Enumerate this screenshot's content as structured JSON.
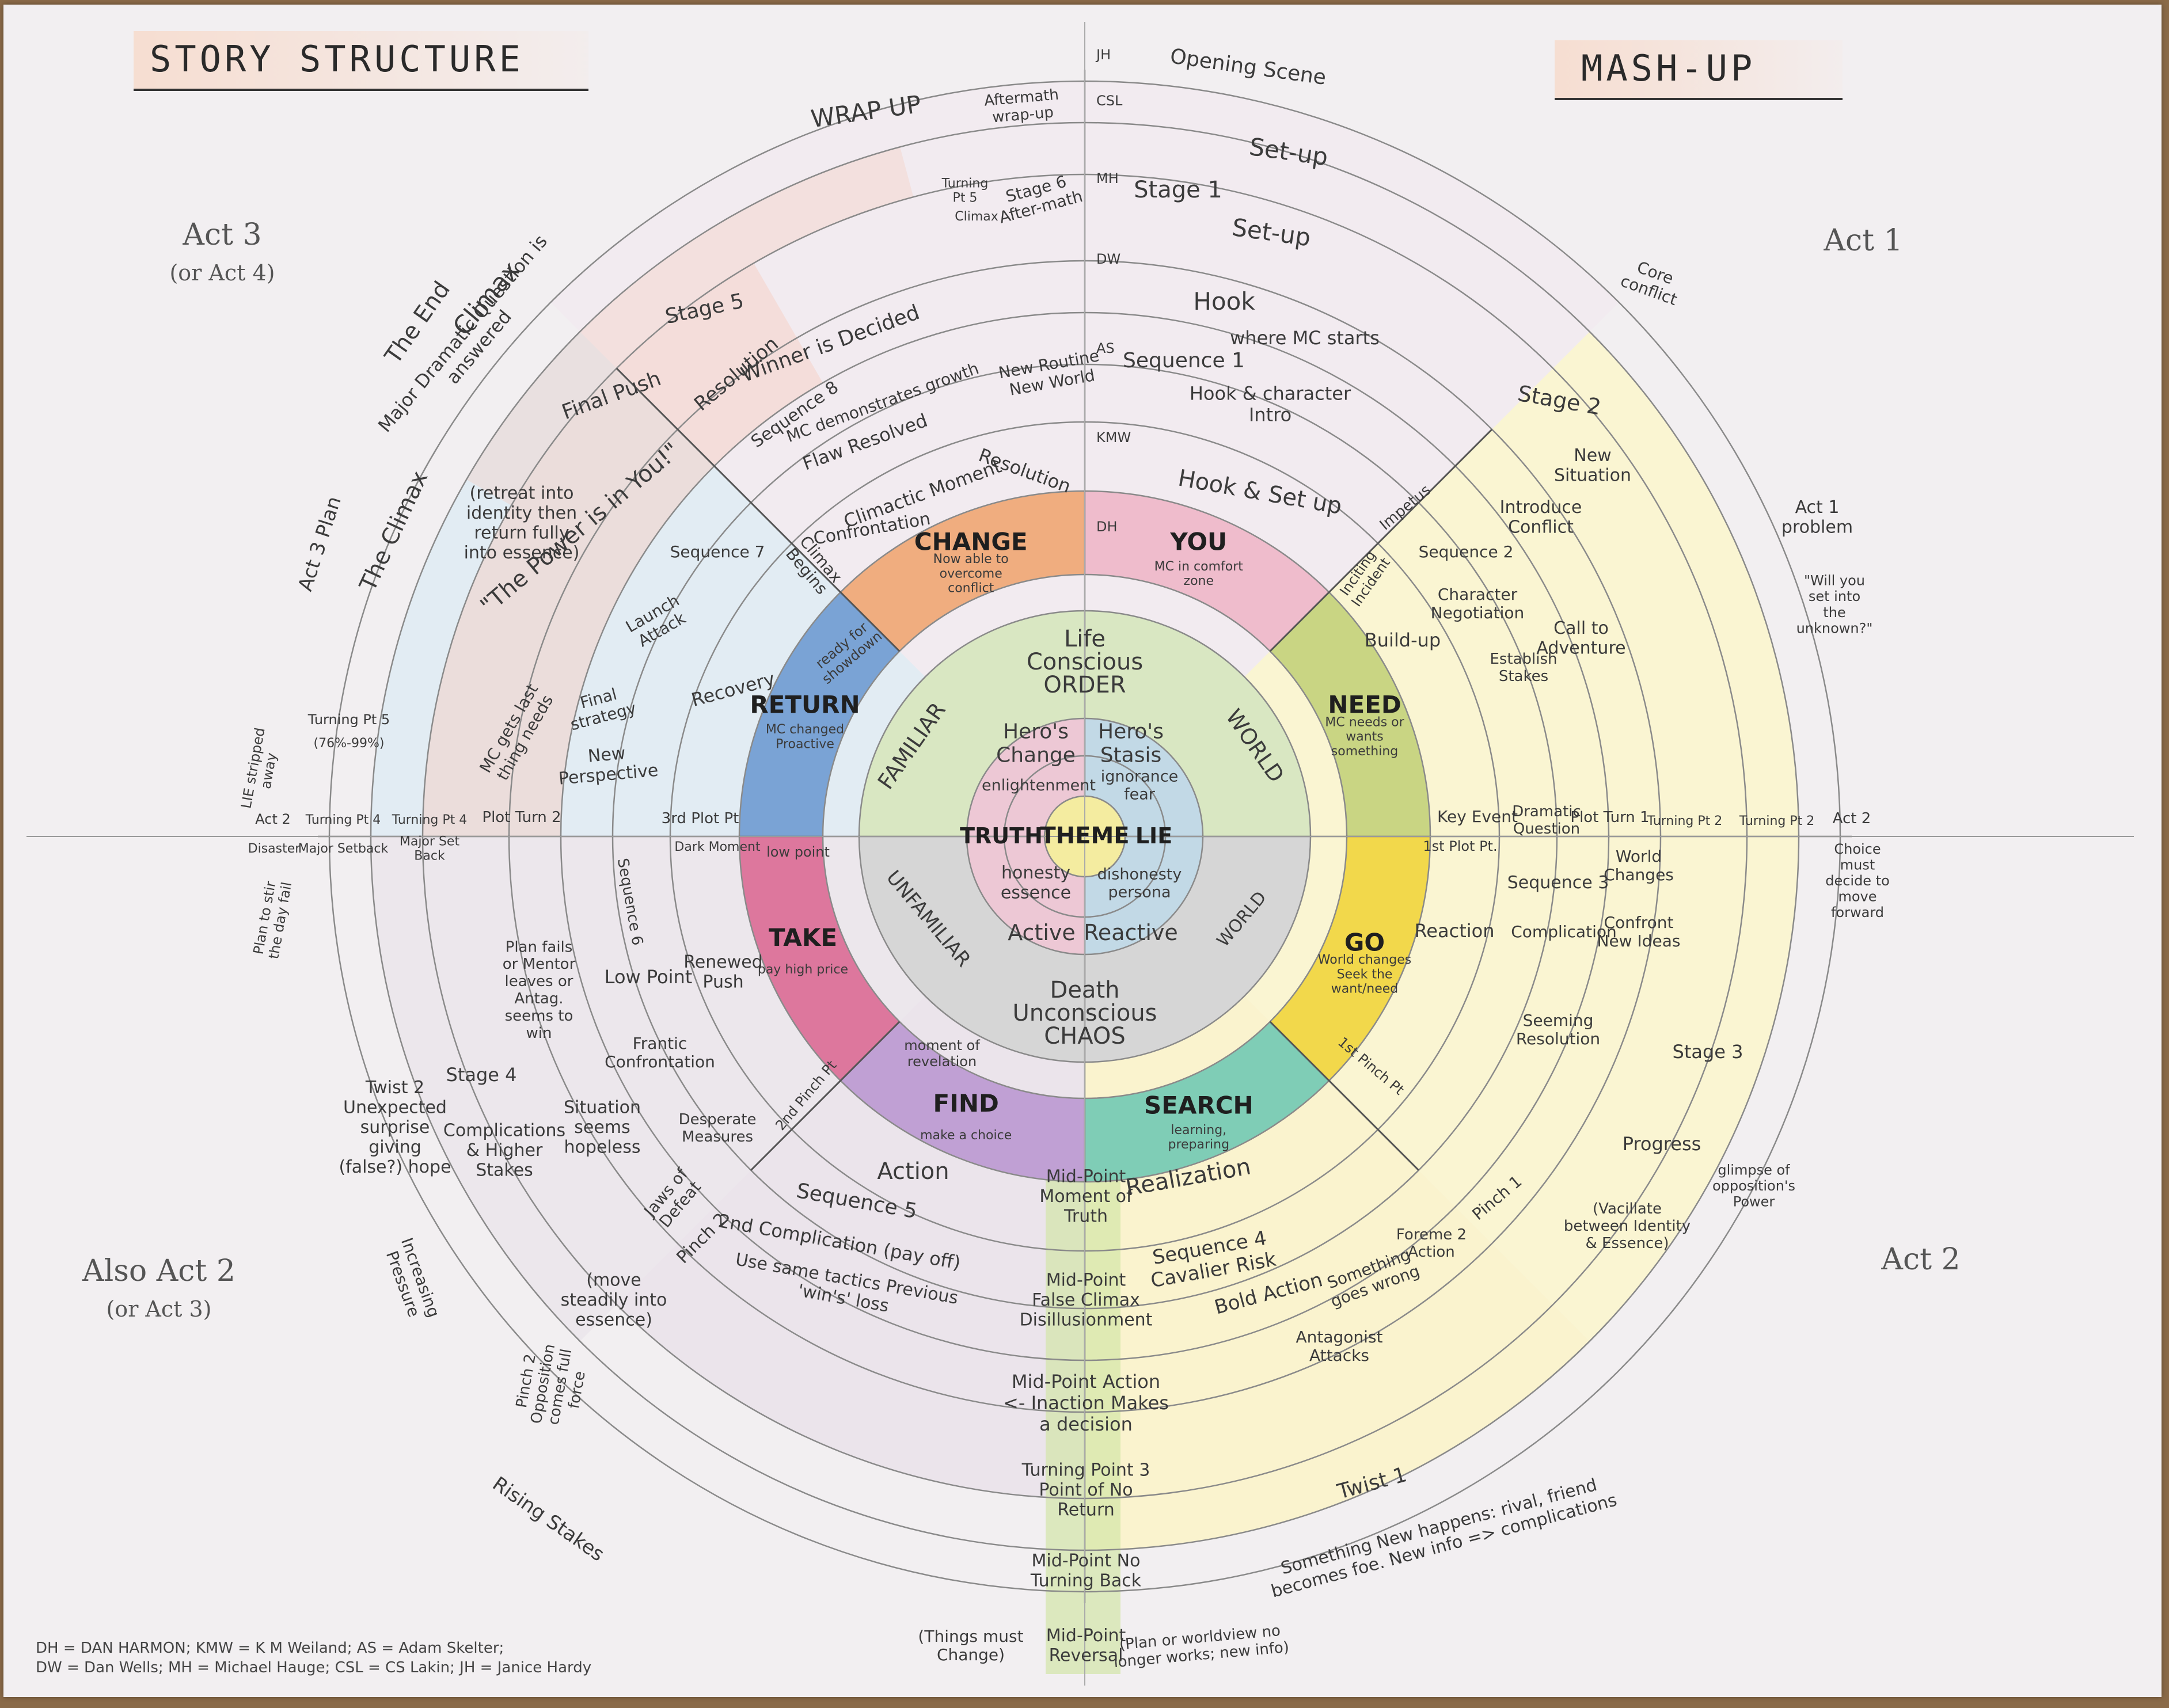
{
  "titles": {
    "left": "STORY STRUCTURE",
    "right": "MASH-UP"
  },
  "acts": {
    "top_left": "Act 3",
    "top_left_sub": "(or Act 4)",
    "top_right": "Act 1",
    "bottom_left": "Also Act 2",
    "bottom_left_sub": "(or Act 3)",
    "bottom_right": "Act 2"
  },
  "key": {
    "line1": "DH = DAN HARMON; KMW = K M Weiland; AS = Adam Skelter;",
    "line2": "DW = Dan Wells; MH = Michael Hauge; CSL = CS Lakin; JH = Janice Hardy"
  },
  "ring_codes": [
    "JH",
    "CSL",
    "MH",
    "DW",
    "AS",
    "KMW",
    "DH"
  ],
  "colors": {
    "change": "#f0a672",
    "you": "#eeb7c8",
    "need": "#c3d27a",
    "go": "#f1d53c",
    "search": "#71c9b4",
    "find": "#bb98d2",
    "take": "#dc6a95",
    "return": "#6f9bd2",
    "familiar": "#d6e6bd",
    "world_top": "#dfe6c7",
    "unfamiliar": "#d3d3d3",
    "theme": "#f4eca0",
    "truth": "#ecc3d1",
    "lie": "#bcd6e4",
    "tint_q1": "#fbf6cc",
    "tint_q2": "#fbf4c6",
    "tint_q3": "#e8e1ea",
    "tint_q4": "#dcebf4",
    "tint_top": "#f3e8ef",
    "salmon": "#f7cbbe",
    "midline": "#d3e6a8"
  },
  "center": {
    "theme": "THEME",
    "truth": "TRUTH",
    "lie": "LIE",
    "heros_change": "Hero's Change",
    "heros_stasis": "Hero's Stasis",
    "enlightenment": "enlightenment",
    "ignorance": "ignorance fear",
    "honesty": "honesty essence",
    "dishonesty": "dishonesty persona",
    "active": "Active",
    "reactive": "Reactive"
  },
  "world": {
    "life": "Life",
    "conscious": "Conscious",
    "order": "ORDER",
    "familiar": "FAMILIAR",
    "world": "WORLD",
    "unfamiliar": "UNFAMILIAR",
    "world2": "WORLD",
    "death": "Death",
    "unconscious": "Unconscious",
    "chaos": "CHAOS"
  },
  "circle": {
    "you": {
      "title": "YOU",
      "text": "MC in comfort zone"
    },
    "need": {
      "title": "NEED",
      "text": "MC needs or wants something"
    },
    "go": {
      "title": "GO",
      "text": "World changes Seek the want/need"
    },
    "search": {
      "title": "SEARCH",
      "text": "learning, preparing"
    },
    "find": {
      "title": "FIND",
      "text": "make a choice"
    },
    "take": {
      "title": "TAKE",
      "text": "pay high price"
    },
    "return": {
      "title": "RETURN",
      "text": "MC changed Proactive"
    },
    "change": {
      "title": "CHANGE",
      "text": "Now able to overcome conflict"
    }
  },
  "notes": {
    "opening_scene": "Opening Scene",
    "setup": "Set-up",
    "stage1": "Stage 1",
    "setup2": "Set-up",
    "hook": "Hook",
    "where_mc_starts": "where MC starts",
    "sequence1": "Sequence 1",
    "hook_intro": "Hook & character Intro",
    "hook_setup": "Hook & Set up",
    "stage2": "Stage 2",
    "new_situation": "New Situation",
    "introduce_conflict": "Introduce Conflict",
    "act1_problem": "Act 1 problem",
    "will_you": "\"Will you set into the unknown?\"",
    "sequence2": "Sequence 2",
    "char_negotiation": "Character Negotiation",
    "call": "Call to Adventure",
    "build_up": "Build-up",
    "establish": "Establish Stakes",
    "inciting": "Inciting Incident",
    "impetus": "Impetus",
    "core_conflict": "Core conflict",
    "key_event": "Key Event",
    "dramatic_q": "Dramatic Question",
    "plot_turn1": "Plot Turn 1",
    "turning_pt2": "Turning Pt 2",
    "act2": "Act 2",
    "first_plot": "1st Plot Pt.",
    "sequence3": "Sequence 3",
    "world_changes": "World Changes",
    "confront": "Confront New Ideas",
    "reaction": "Reaction",
    "complication": "Complication",
    "seeming_resolution": "Seeming Resolution",
    "choice": "Choice must decide to move forward",
    "stage3": "Stage 3",
    "progress": "Progress",
    "vacillate": "(Vacillate between Identity & Essence)",
    "pinch1": "Pinch 1",
    "foreme": "Foreme 2 Action",
    "glimpse": "glimpse of opposition's Power",
    "first_pinch": "1st Pinch Pt",
    "realization": "Realization",
    "sequence4": "Sequence 4 Cavalier Risk",
    "bold_action": "Bold Action",
    "something_wrong": "Something goes wrong",
    "antagonist": "Antagonist Attacks",
    "twist1": "Twist 1",
    "twist1_text": "Something New happens: rival, friend becomes foe. New info => complications",
    "midpoint1": "Mid-Point Moment of Truth",
    "midpoint2": "Mid-Point False Climax Disillusionment",
    "midpoint3": "Mid-Point Action <- Inaction Makes a decision",
    "turning_point3": "Turning Point 3 Point of No Return",
    "midpoint4": "Mid-Point No Turning Back",
    "midpoint5": "Mid-Point Reversal",
    "things_must_change": "(Things must Change)",
    "plan_worldview": "(Plan or worldview no longer works; new info)",
    "action": "Action",
    "sequence5": "Sequence 5",
    "second_comp": "2nd Complication (pay off)",
    "prev_wins": "Use same tactics Previous 'win's' loss",
    "moment_revelation": "moment of revelation",
    "second_pinch": "2nd Pinch Pt",
    "jaws": "Jaws of Defeat",
    "pinch2": "Pinch 2",
    "desperate": "Desperate Measures",
    "frantic": "Frantic Confrontation",
    "low_point": "Low Point",
    "sequence6": "Sequence 6",
    "renewed_push": "Renewed Push",
    "dark_moment": "Dark Moment",
    "low_point2": "low point",
    "stage4": "Stage 4",
    "complications": "Complications & Higher Stakes",
    "move_steadily": "(move steadily into essence)",
    "twist2": "Twist 2 Unexpected surprise giving (false?) hope",
    "increasing": "Increasing Pressure",
    "rising": "Rising Stakes",
    "pinch_opp": "Pinch 2 Opposition comes full force",
    "plan_fail": "Plan to stir the day fail",
    "situation": "Situation seems hopeless",
    "planfails": "Plan fails or Mentor leaves or Antag. seems to win",
    "disaster": "Disaster",
    "major_setback": "Major Setback",
    "major_setback2": "Major Set Back",
    "plot_turn2": "Plot Turn 2",
    "third_plot": "3rd Plot Pt",
    "act2_l": "Act 2",
    "turning_pt4": "Turning Pt 4",
    "turning_pt4b": "Turning Pt 4",
    "lie_stripped": "LIE stripped away",
    "new_perspective": "New Perspective",
    "final_strategy": "Final strategy",
    "launch_attack": "Launch Attack",
    "recovery": "Recovery",
    "sequence7": "Sequence 7",
    "mc_gets_last": "MC gets last thing needs",
    "power_is_in_you": "\"The Power is in You!\"",
    "retreat": "(retreat into identity then return fully into essence)",
    "final_push": "Final Push",
    "stage5": "Stage 5",
    "the_climax": "The Climax",
    "act3_plan": "Act 3 Plan",
    "major_dq": "Major Dramatic Question is answered",
    "climax": "Climax",
    "the_end": "The End",
    "turning_pt5": "Turning Pt 5",
    "pct": "(76%-99%)",
    "wrap_up": "WRAP UP",
    "aftermath": "Aftermath wrap-up",
    "turning_pt5b": "Turning Pt 5",
    "climax2": "Climax",
    "stage6": "Stage 6 After-math",
    "resolution": "Resolution",
    "winner": "Winner is Decided",
    "sequence8": "Sequence 8",
    "mc_demonstrates": "MC demonstrates growth",
    "flaw_resolved": "Flaw Resolved",
    "new_routine": "New Routine New World",
    "climactic_moment": "Climactic Moment",
    "resolution2": "Resolution",
    "confrontation": "Confrontation",
    "climax_begins": "Climax Begins",
    "ready_showdown": "ready for showdown",
    "return_text": "MC changed Proactive"
  }
}
